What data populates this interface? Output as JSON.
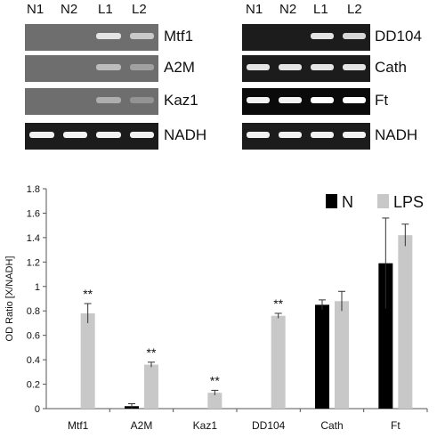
{
  "gel": {
    "lanes": [
      "N1",
      "N2",
      "L1",
      "L2"
    ],
    "left_panel": [
      {
        "gene": "Mtf1",
        "bands": [
          0,
          0,
          0.8,
          0.6
        ]
      },
      {
        "gene": "A2M",
        "bands": [
          0,
          0,
          0.5,
          0.3
        ]
      },
      {
        "gene": "Kaz1",
        "bands": [
          0,
          0,
          0.4,
          0.2
        ]
      },
      {
        "gene": "NADH",
        "bands": [
          0.9,
          0.9,
          0.9,
          0.9
        ]
      }
    ],
    "right_panel": [
      {
        "gene": "DD104",
        "bands": [
          0,
          0,
          0.8,
          0.7
        ]
      },
      {
        "gene": "Cath",
        "bands": [
          0.8,
          0.8,
          0.8,
          0.8
        ]
      },
      {
        "gene": "Ft",
        "bands": [
          0.9,
          0.9,
          1.0,
          1.0
        ]
      },
      {
        "gene": "NADH",
        "bands": [
          0.9,
          0.9,
          0.9,
          0.9
        ]
      }
    ]
  },
  "chart_data": {
    "type": "bar",
    "categories": [
      "Mtf1",
      "A2M",
      "Kaz1",
      "DD104",
      "Cath",
      "Ft"
    ],
    "series": [
      {
        "name": "N",
        "color": "#000000",
        "values": [
          0.0,
          0.02,
          0.0,
          0.0,
          0.85,
          1.19
        ],
        "errors": [
          0.0,
          0.02,
          0.0,
          0.0,
          0.04,
          0.37
        ]
      },
      {
        "name": "LPS",
        "color": "#c8c8c8",
        "values": [
          0.78,
          0.36,
          0.13,
          0.76,
          0.88,
          1.42
        ],
        "errors": [
          0.08,
          0.02,
          0.02,
          0.02,
          0.08,
          0.09
        ]
      }
    ],
    "annotations": [
      "**",
      "**",
      "**",
      "**",
      "",
      ""
    ],
    "ylabel": "OD Ratio [X/NADH]",
    "yticks": [
      "0",
      "0.2",
      "0.4",
      "0.6",
      "0.8",
      "1",
      "1.2",
      "1.4",
      "1.6",
      "1.8"
    ],
    "ylim": [
      0,
      1.8
    ],
    "legend_position": "top-right",
    "grid": false
  }
}
